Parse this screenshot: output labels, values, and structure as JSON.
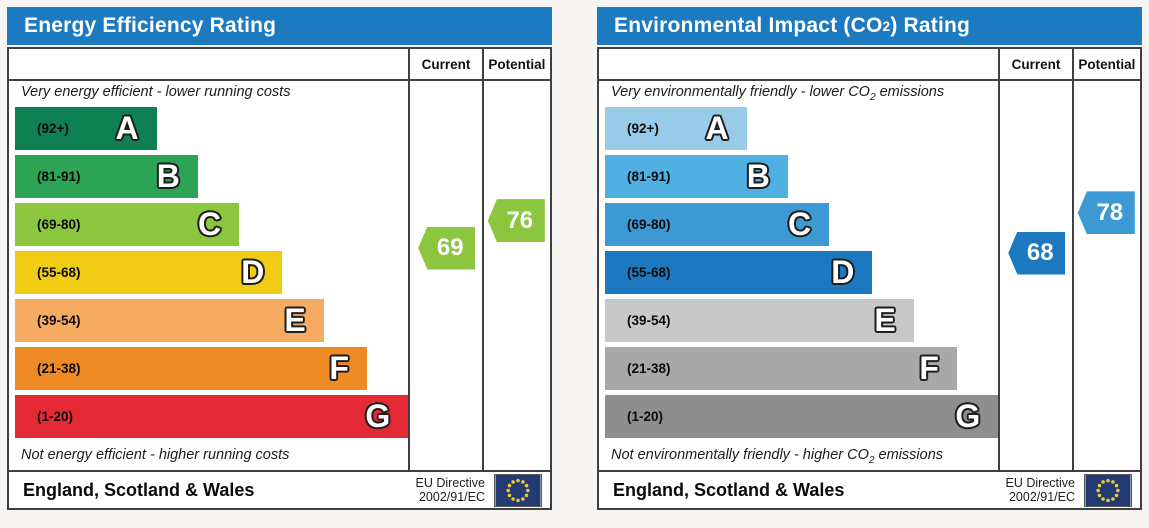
{
  "page": {
    "background": "#f6f5f3",
    "border_color": "#3f3f41"
  },
  "chart_data": [
    {
      "type": "bar",
      "chart_kind": "epc-energy-efficiency-rating",
      "title_pre": "Energy Efficiency Rating",
      "title_sub": "",
      "title_post": "",
      "title_bg": "#1b7ac0",
      "title_color": "#ffffff",
      "columns": {
        "current": "Current",
        "potential": "Potential"
      },
      "caption_top_pre": "Very energy efficient - lower running costs",
      "caption_top_sub": "",
      "caption_top_post": "",
      "caption_bottom_pre": "Not energy efficient - higher running costs",
      "caption_bottom_sub": "",
      "caption_bottom_post": "",
      "bands": [
        {
          "letter": "A",
          "range_label": "(92+)",
          "min": 92,
          "max": 100,
          "color": "#0e8054",
          "width_pct": 36
        },
        {
          "letter": "B",
          "range_label": "(81-91)",
          "min": 81,
          "max": 91,
          "color": "#2ca355",
          "width_pct": 46.5
        },
        {
          "letter": "C",
          "range_label": "(69-80)",
          "min": 69,
          "max": 80,
          "color": "#8cc53e",
          "width_pct": 57
        },
        {
          "letter": "D",
          "range_label": "(55-68)",
          "min": 55,
          "max": 68,
          "color": "#f1cc15",
          "width_pct": 68
        },
        {
          "letter": "E",
          "range_label": "(39-54)",
          "min": 39,
          "max": 54,
          "color": "#f6ab62",
          "width_pct": 78.5
        },
        {
          "letter": "F",
          "range_label": "(21-38)",
          "min": 21,
          "max": 38,
          "color": "#ee8b25",
          "width_pct": 89.5
        },
        {
          "letter": "G",
          "range_label": "(1-20)",
          "min": 1,
          "max": 20,
          "color": "#e42a35",
          "width_pct": 100
        }
      ],
      "current": {
        "value": 69
      },
      "potential": {
        "value": 76
      },
      "footer": {
        "region": "England, Scotland & Wales",
        "directive_line1": "EU Directive",
        "directive_line2": "2002/91/EC",
        "flag_bg": "#243a73",
        "flag_star": "#ecc63d"
      }
    },
    {
      "type": "bar",
      "chart_kind": "epc-environmental-impact-co2-rating",
      "title_pre": "Environmental Impact (CO",
      "title_sub": "2",
      "title_post": ") Rating",
      "title_bg": "#1b7ac0",
      "title_color": "#ffffff",
      "columns": {
        "current": "Current",
        "potential": "Potential"
      },
      "caption_top_pre": "Very environmentally friendly - lower CO",
      "caption_top_sub": "2",
      "caption_top_post": " emissions",
      "caption_bottom_pre": "Not environmentally friendly - higher CO",
      "caption_bottom_sub": "2",
      "caption_bottom_post": " emissions",
      "bands": [
        {
          "letter": "A",
          "range_label": "(92+)",
          "min": 92,
          "max": 100,
          "color": "#98cbe8",
          "width_pct": 36
        },
        {
          "letter": "B",
          "range_label": "(81-91)",
          "min": 81,
          "max": 91,
          "color": "#50b0e1",
          "width_pct": 46.5
        },
        {
          "letter": "C",
          "range_label": "(69-80)",
          "min": 69,
          "max": 80,
          "color": "#3c99d3",
          "width_pct": 57
        },
        {
          "letter": "D",
          "range_label": "(55-68)",
          "min": 55,
          "max": 68,
          "color": "#1d79bf",
          "width_pct": 68
        },
        {
          "letter": "E",
          "range_label": "(39-54)",
          "min": 39,
          "max": 54,
          "color": "#c8c8c8",
          "width_pct": 78.5
        },
        {
          "letter": "F",
          "range_label": "(21-38)",
          "min": 21,
          "max": 38,
          "color": "#a8a8a9",
          "width_pct": 89.5
        },
        {
          "letter": "G",
          "range_label": "(1-20)",
          "min": 1,
          "max": 20,
          "color": "#8e8e8e",
          "width_pct": 100
        }
      ],
      "current": {
        "value": 68
      },
      "potential": {
        "value": 78
      },
      "footer": {
        "region": "England, Scotland & Wales",
        "directive_line1": "EU Directive",
        "directive_line2": "2002/91/EC",
        "flag_bg": "#243a73",
        "flag_star": "#ecc63d"
      }
    }
  ]
}
